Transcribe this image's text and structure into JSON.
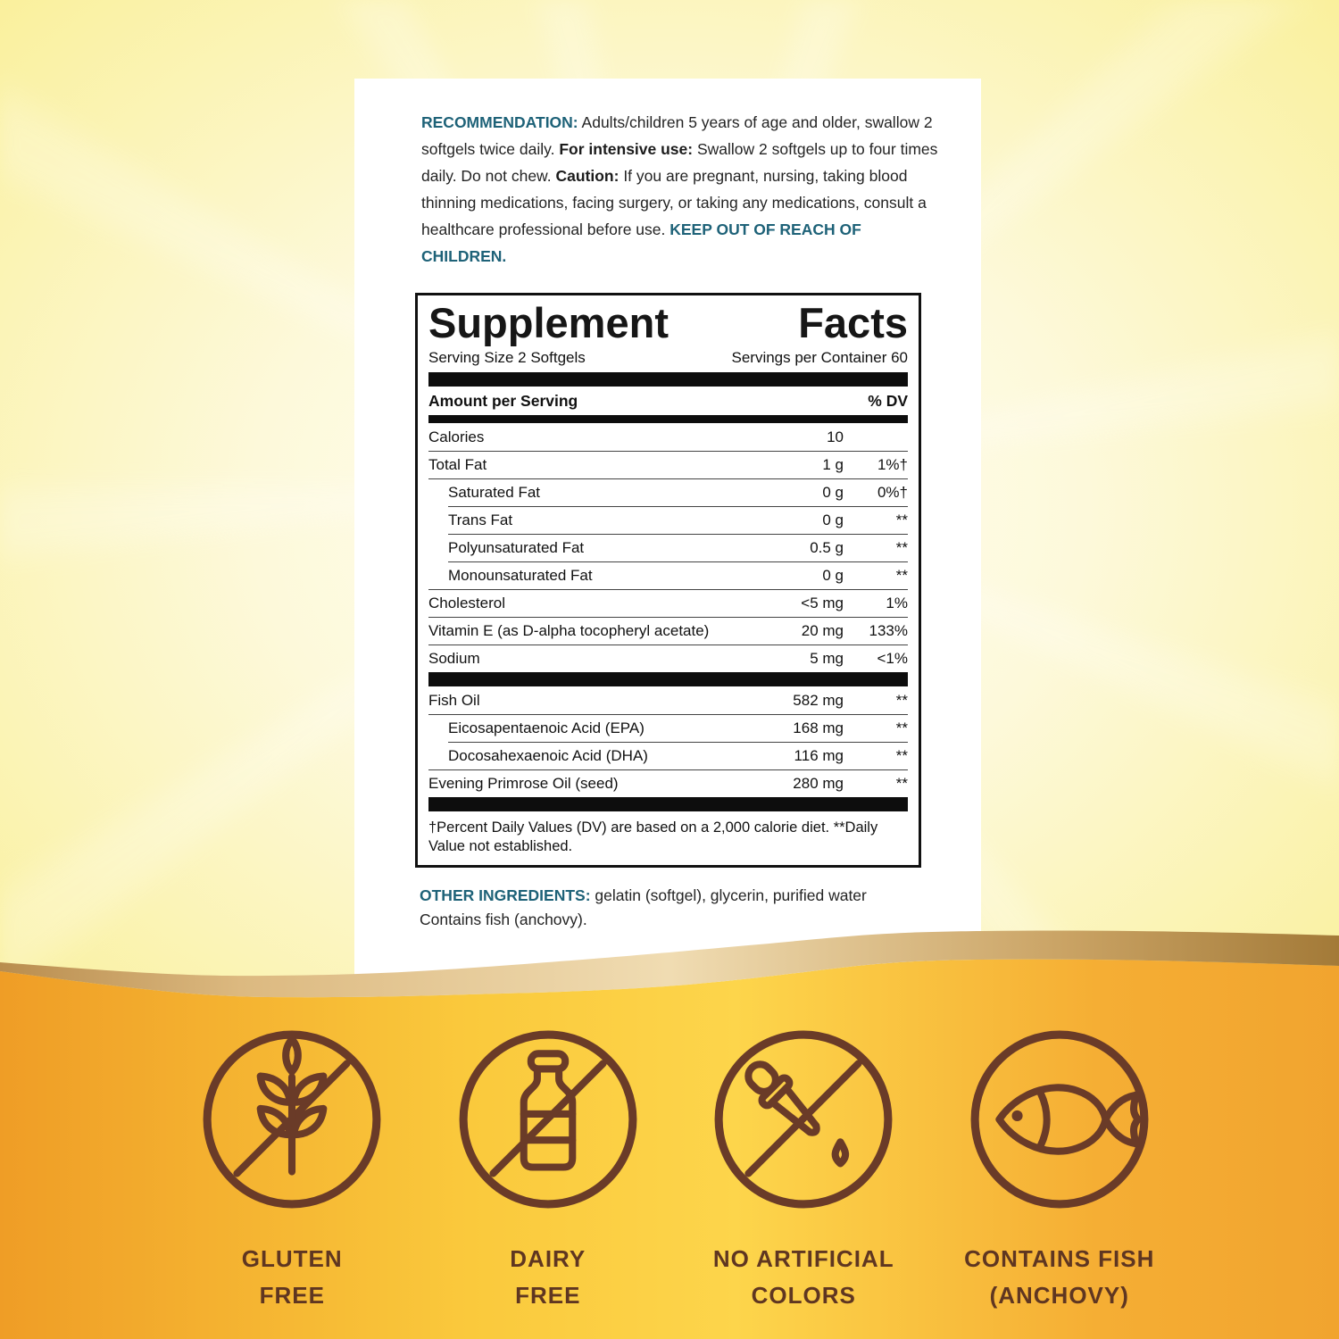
{
  "recommendation": {
    "heading": "RECOMMENDATION:",
    "part1": "Adults/children 5 years of age and older, swallow 2 softgels twice daily.",
    "intensive_label": "For intensive use:",
    "part2": "Swallow 2 softgels up to four times daily. Do not chew.",
    "caution_label": "Caution:",
    "part3": "If you are pregnant, nursing, taking blood thinning medications, facing surgery, or taking any medications, consult a healthcare professional before use.",
    "keep_out": "KEEP OUT OF REACH OF CHILDREN."
  },
  "facts": {
    "title": "Supplement Facts",
    "serving_size": "Serving Size 2 Softgels",
    "servings_per_container": "Servings per Container 60",
    "amount_header": "Amount per Serving",
    "dv_header": "% DV",
    "rows": [
      {
        "type": "row",
        "name": "Calories",
        "amount": "10",
        "dv": "",
        "indent": 0
      },
      {
        "type": "row",
        "name": "Total Fat",
        "amount": "1 g",
        "dv": "1%†",
        "indent": 0
      },
      {
        "type": "row",
        "name": "Saturated Fat",
        "amount": "0 g",
        "dv": "0%†",
        "indent": 1
      },
      {
        "type": "row",
        "name": "Trans Fat",
        "amount": "0 g",
        "dv": "**",
        "indent": 1
      },
      {
        "type": "row",
        "name": "Polyunsaturated Fat",
        "amount": "0.5 g",
        "dv": "**",
        "indent": 1
      },
      {
        "type": "row",
        "name": "Monounsaturated Fat",
        "amount": "0 g",
        "dv": "**",
        "indent": 1
      },
      {
        "type": "row",
        "name": "Cholesterol",
        "amount": "<5 mg",
        "dv": "1%",
        "indent": 0
      },
      {
        "type": "row",
        "name": "Vitamin E (as D-alpha tocopheryl acetate)",
        "amount": "20 mg",
        "dv": "133%",
        "indent": 0
      },
      {
        "type": "row",
        "name": "Sodium",
        "amount": "5 mg",
        "dv": "<1%",
        "indent": 0
      },
      {
        "type": "bar"
      },
      {
        "type": "row",
        "name": "Fish Oil",
        "amount": "582 mg",
        "dv": "**",
        "indent": 0
      },
      {
        "type": "row",
        "name": "Eicosapentaenoic Acid (EPA)",
        "amount": "168 mg",
        "dv": "**",
        "indent": 1
      },
      {
        "type": "row",
        "name": "Docosahexaenoic Acid (DHA)",
        "amount": "116 mg",
        "dv": "**",
        "indent": 1
      },
      {
        "type": "row",
        "name": "Evening Primrose Oil (seed)",
        "amount": "280 mg",
        "dv": "**",
        "indent": 0
      },
      {
        "type": "bar"
      }
    ],
    "footnote": "†Percent Daily Values (DV) are based on a 2,000 calorie diet. **Daily Value not established."
  },
  "other_ingredients": {
    "heading": "OTHER INGREDIENTS:",
    "text": "gelatin (softgel), glycerin, purified water",
    "contains": "Contains fish (anchovy)."
  },
  "badges": [
    {
      "icon": "wheat-crossed-icon",
      "line1": "GLUTEN",
      "line2": "FREE"
    },
    {
      "icon": "milk-bottle-crossed-icon",
      "line1": "DAIRY",
      "line2": "FREE"
    },
    {
      "icon": "dropper-crossed-icon",
      "line1": "NO ARTIFICIAL",
      "line2": "COLORS"
    },
    {
      "icon": "fish-icon",
      "line1": "CONTAINS FISH",
      "line2": "(ANCHOVY)"
    }
  ],
  "colors": {
    "teal_heading": "#1e6278",
    "icon_brown": "#6a3b28",
    "badge_text_brown": "#5f3621",
    "bar_black": "#0d0d0d",
    "gold_left": "#ef9d26",
    "gold_mid": "#fdd54b",
    "ribbon_tan": "#f0dcb2",
    "background_yellow": "#f4e250"
  }
}
